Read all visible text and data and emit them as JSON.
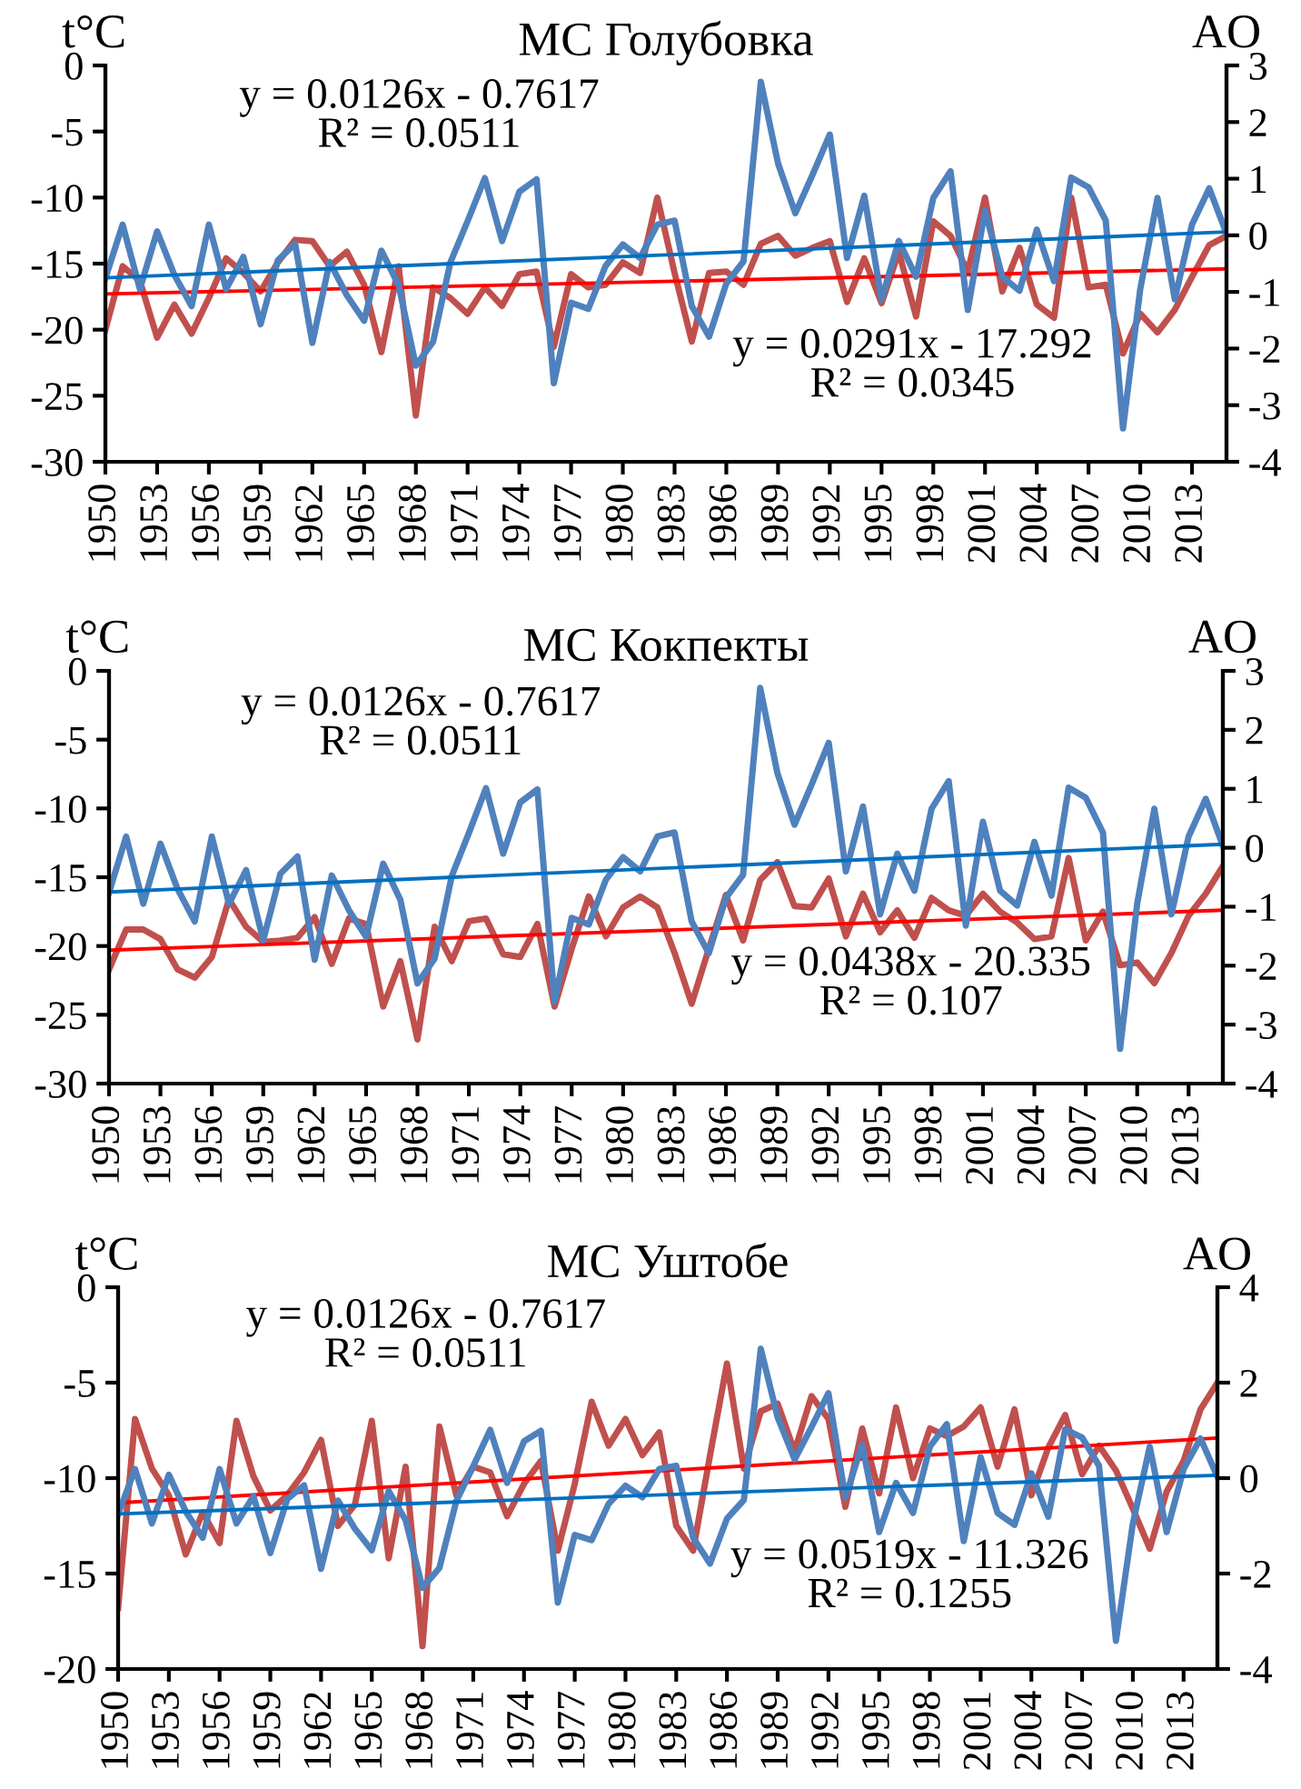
{
  "chart_data": [
    {
      "type": "line",
      "title": "МС Голубовка",
      "ylabel": "t°C",
      "y2label": "AO",
      "x": [
        1950,
        1951,
        1952,
        1953,
        1954,
        1955,
        1956,
        1957,
        1958,
        1959,
        1960,
        1961,
        1962,
        1963,
        1964,
        1965,
        1966,
        1967,
        1968,
        1969,
        1970,
        1971,
        1972,
        1973,
        1974,
        1975,
        1976,
        1977,
        1978,
        1979,
        1980,
        1981,
        1982,
        1983,
        1984,
        1985,
        1986,
        1987,
        1988,
        1989,
        1990,
        1991,
        1992,
        1993,
        1994,
        1995,
        1996,
        1997,
        1998,
        1999,
        2000,
        2001,
        2002,
        2003,
        2004,
        2005,
        2006,
        2007,
        2008,
        2009,
        2010,
        2011,
        2012,
        2013,
        2014,
        2015
      ],
      "xlim": [
        1950,
        2015
      ],
      "xticks": [
        1950,
        1953,
        1956,
        1959,
        1962,
        1965,
        1968,
        1971,
        1974,
        1977,
        1980,
        1983,
        1986,
        1989,
        1992,
        1995,
        1998,
        2001,
        2004,
        2007,
        2010,
        2013
      ],
      "ylim": [
        -30,
        0
      ],
      "yticks": [
        -30,
        -25,
        -20,
        -15,
        -10,
        -5,
        0
      ],
      "y2lim": [
        -4,
        3
      ],
      "y2ticks": [
        -4,
        -3,
        -2,
        -1,
        0,
        1,
        2,
        3
      ],
      "grid": false,
      "line_style": "solid",
      "series": [
        {
          "color": "#c0504d",
          "values": [
            -20.0,
            -15.2,
            -16.3,
            -20.6,
            -18.1,
            -20.3,
            -17.6,
            -14.6,
            -15.7,
            -17.1,
            -14.9,
            -13.2,
            -13.3,
            -15.2,
            -14.1,
            -16.6,
            -21.7,
            -15.2,
            -26.5,
            -16.8,
            -17.6,
            -18.8,
            -16.8,
            -18.2,
            -15.8,
            -15.6,
            -21.3,
            -15.8,
            -16.8,
            -16.6,
            -14.9,
            -15.7,
            -10.0,
            -15.7,
            -20.9,
            -15.7,
            -15.6,
            -16.6,
            -13.5,
            -12.9,
            -14.4,
            -13.8,
            -13.3,
            -17.9,
            -14.6,
            -18.0,
            -14.1,
            -19.0,
            -11.8,
            -12.9,
            -15.6,
            -10.0,
            -17.1,
            -13.8,
            -18.1,
            -19.1,
            -10.0,
            -16.8,
            -16.6,
            -21.8,
            -18.8,
            -20.2,
            -18.5,
            -16.0,
            -13.6,
            -12.9
          ]
        },
        {
          "color": "#4f81bd",
          "axis": "y2",
          "values": [
            -0.76,
            0.19,
            -0.95,
            0.07,
            -0.7,
            -1.25,
            0.19,
            -0.95,
            -0.38,
            -1.57,
            -0.44,
            -0.15,
            -1.9,
            -0.47,
            -1.06,
            -1.51,
            -0.27,
            -0.88,
            -2.3,
            -1.88,
            -0.48,
            0.25,
            1.01,
            -0.1,
            0.77,
            0.99,
            -2.61,
            -1.19,
            -1.3,
            -0.54,
            -0.16,
            -0.4,
            0.19,
            0.26,
            -1.25,
            -1.79,
            -0.85,
            -0.46,
            2.71,
            1.27,
            0.39,
            1.07,
            1.78,
            -0.4,
            0.7,
            -1.13,
            -0.1,
            -0.73,
            0.66,
            1.13,
            -1.32,
            0.44,
            -0.73,
            -0.98,
            0.1,
            -0.81,
            1.02,
            0.85,
            0.26,
            -3.41,
            -0.95,
            0.66,
            -1.13,
            0.19,
            0.83,
            0.03
          ]
        },
        {
          "color": "#ff0000",
          "type": "line",
          "values": [
            -17.3,
            null,
            null,
            null,
            null,
            null,
            null,
            null,
            null,
            null,
            null,
            null,
            null,
            null,
            null,
            null,
            null,
            null,
            null,
            null,
            null,
            null,
            null,
            null,
            null,
            null,
            null,
            null,
            null,
            null,
            null,
            null,
            null,
            null,
            null,
            null,
            null,
            null,
            null,
            null,
            null,
            null,
            null,
            null,
            null,
            null,
            null,
            null,
            null,
            null,
            null,
            null,
            null,
            null,
            null,
            null,
            null,
            null,
            null,
            null,
            null,
            null,
            null,
            null,
            null,
            -15.4
          ]
        },
        {
          "color": "#0070c0",
          "type": "line",
          "axis": "y2",
          "values": [
            -0.75,
            null,
            null,
            null,
            null,
            null,
            null,
            null,
            null,
            null,
            null,
            null,
            null,
            null,
            null,
            null,
            null,
            null,
            null,
            null,
            null,
            null,
            null,
            null,
            null,
            null,
            null,
            null,
            null,
            null,
            null,
            null,
            null,
            null,
            null,
            null,
            null,
            null,
            null,
            null,
            null,
            null,
            null,
            null,
            null,
            null,
            null,
            null,
            null,
            null,
            null,
            null,
            null,
            null,
            null,
            null,
            null,
            null,
            null,
            null,
            null,
            null,
            null,
            null,
            null,
            0.06
          ]
        }
      ],
      "annotations": [
        "y = 0.0126x - 0.7617\nR² = 0.0511",
        "y = 0.0291x - 17.292\nR² = 0.0345"
      ]
    },
    {
      "type": "line",
      "title": "МС Кокпекты",
      "ylabel": "t°C",
      "y2label": "AO",
      "x": [
        1950,
        1951,
        1952,
        1953,
        1954,
        1955,
        1956,
        1957,
        1958,
        1959,
        1960,
        1961,
        1962,
        1963,
        1964,
        1965,
        1966,
        1967,
        1968,
        1969,
        1970,
        1971,
        1972,
        1973,
        1974,
        1975,
        1976,
        1977,
        1978,
        1979,
        1980,
        1981,
        1982,
        1983,
        1984,
        1985,
        1986,
        1987,
        1988,
        1989,
        1990,
        1991,
        1992,
        1993,
        1994,
        1995,
        1996,
        1997,
        1998,
        1999,
        2000,
        2001,
        2002,
        2003,
        2004,
        2005,
        2006,
        2007,
        2008,
        2009,
        2010,
        2011,
        2012,
        2013,
        2014,
        2015
      ],
      "xlim": [
        1950,
        2015
      ],
      "xticks": [
        1950,
        1953,
        1956,
        1959,
        1962,
        1965,
        1968,
        1971,
        1974,
        1977,
        1980,
        1983,
        1986,
        1989,
        1992,
        1995,
        1998,
        2001,
        2004,
        2007,
        2010,
        2013
      ],
      "ylim": [
        -30,
        0
      ],
      "yticks": [
        -30,
        -25,
        -20,
        -15,
        -10,
        -5,
        0
      ],
      "y2lim": [
        -4,
        3
      ],
      "y2ticks": [
        -4,
        -3,
        -2,
        -1,
        0,
        1,
        2,
        3
      ],
      "grid": false,
      "line_style": "solid",
      "series": [
        {
          "color": "#c0504d",
          "values": [
            -21.7,
            -18.8,
            -18.8,
            -19.5,
            -21.7,
            -22.3,
            -20.8,
            -16.6,
            -18.6,
            -19.7,
            -19.6,
            -19.4,
            -17.9,
            -21.3,
            -18.0,
            -18.4,
            -24.4,
            -21.1,
            -26.8,
            -18.6,
            -21.1,
            -18.2,
            -18.0,
            -20.6,
            -20.8,
            -18.4,
            -24.4,
            -20.2,
            -16.4,
            -19.3,
            -17.2,
            -16.4,
            -17.2,
            -20.5,
            -24.2,
            -20.2,
            -16.3,
            -19.6,
            -15.2,
            -13.9,
            -17.1,
            -17.2,
            -15.1,
            -19.3,
            -16.2,
            -19.0,
            -17.4,
            -19.4,
            -16.5,
            -17.4,
            -17.8,
            -16.2,
            -17.5,
            -18.3,
            -19.5,
            -19.3,
            -13.6,
            -19.6,
            -17.5,
            -21.4,
            -21.2,
            -22.7,
            -20.5,
            -17.8,
            -16.2,
            -14.2
          ]
        },
        {
          "color": "#4f81bd",
          "axis": "y2",
          "values": [
            -0.76,
            0.19,
            -0.95,
            0.07,
            -0.7,
            -1.25,
            0.19,
            -0.95,
            -0.38,
            -1.57,
            -0.44,
            -0.15,
            -1.9,
            -0.47,
            -1.06,
            -1.51,
            -0.27,
            -0.88,
            -2.3,
            -1.88,
            -0.48,
            0.25,
            1.01,
            -0.1,
            0.77,
            0.99,
            -2.61,
            -1.19,
            -1.3,
            -0.54,
            -0.16,
            -0.4,
            0.19,
            0.26,
            -1.25,
            -1.79,
            -0.85,
            -0.46,
            2.71,
            1.27,
            0.39,
            1.07,
            1.78,
            -0.4,
            0.7,
            -1.13,
            -0.1,
            -0.73,
            0.66,
            1.13,
            -1.32,
            0.44,
            -0.73,
            -0.98,
            0.1,
            -0.81,
            1.02,
            0.85,
            0.26,
            -3.41,
            -0.95,
            0.66,
            -1.13,
            0.19,
            0.83,
            0.03
          ]
        },
        {
          "color": "#ff0000",
          "type": "line",
          "values": [
            -20.3,
            null,
            null,
            null,
            null,
            null,
            null,
            null,
            null,
            null,
            null,
            null,
            null,
            null,
            null,
            null,
            null,
            null,
            null,
            null,
            null,
            null,
            null,
            null,
            null,
            null,
            null,
            null,
            null,
            null,
            null,
            null,
            null,
            null,
            null,
            null,
            null,
            null,
            null,
            null,
            null,
            null,
            null,
            null,
            null,
            null,
            null,
            null,
            null,
            null,
            null,
            null,
            null,
            null,
            null,
            null,
            null,
            null,
            null,
            null,
            null,
            null,
            null,
            null,
            null,
            -17.4
          ]
        },
        {
          "color": "#0070c0",
          "type": "line",
          "axis": "y2",
          "values": [
            -0.75,
            null,
            null,
            null,
            null,
            null,
            null,
            null,
            null,
            null,
            null,
            null,
            null,
            null,
            null,
            null,
            null,
            null,
            null,
            null,
            null,
            null,
            null,
            null,
            null,
            null,
            null,
            null,
            null,
            null,
            null,
            null,
            null,
            null,
            null,
            null,
            null,
            null,
            null,
            null,
            null,
            null,
            null,
            null,
            null,
            null,
            null,
            null,
            null,
            null,
            null,
            null,
            null,
            null,
            null,
            null,
            null,
            null,
            null,
            null,
            null,
            null,
            null,
            null,
            null,
            0.06
          ]
        }
      ],
      "annotations": [
        "y = 0.0126x - 0.7617\nR² = 0.0511",
        "y = 0.0438x - 20.335\nR² = 0.107"
      ]
    },
    {
      "type": "line",
      "title": "МС Уштобе",
      "ylabel": "t°C",
      "y2label": "AO",
      "x": [
        1950,
        1951,
        1952,
        1953,
        1954,
        1955,
        1956,
        1957,
        1958,
        1959,
        1960,
        1961,
        1962,
        1963,
        1964,
        1965,
        1966,
        1967,
        1968,
        1969,
        1970,
        1971,
        1972,
        1973,
        1974,
        1975,
        1976,
        1977,
        1978,
        1979,
        1980,
        1981,
        1982,
        1983,
        1984,
        1985,
        1986,
        1987,
        1988,
        1989,
        1990,
        1991,
        1992,
        1993,
        1994,
        1995,
        1996,
        1997,
        1998,
        1999,
        2000,
        2001,
        2002,
        2003,
        2004,
        2005,
        2006,
        2007,
        2008,
        2009,
        2010,
        2011,
        2012,
        2013,
        2014,
        2015
      ],
      "xlim": [
        1950,
        2015
      ],
      "xticks": [
        1950,
        1953,
        1956,
        1959,
        1962,
        1965,
        1968,
        1971,
        1974,
        1977,
        1980,
        1983,
        1986,
        1989,
        1992,
        1995,
        1998,
        2001,
        2004,
        2007,
        2010,
        2013
      ],
      "ylim": [
        -20,
        0
      ],
      "yticks": [
        -20,
        -15,
        -10,
        -5,
        0
      ],
      "y2lim": [
        -4,
        4
      ],
      "y2ticks": [
        -4,
        -2,
        0,
        2,
        4
      ],
      "grid": false,
      "line_style": "solid",
      "series": [
        {
          "color": "#c0504d",
          "values": [
            -16.8,
            -6.9,
            -9.5,
            -10.9,
            -14.0,
            -11.8,
            -13.4,
            -7.0,
            -9.9,
            -11.7,
            -10.9,
            -9.7,
            -8.0,
            -12.5,
            -11.4,
            -7.0,
            -14.2,
            -9.4,
            -18.8,
            -7.3,
            -10.9,
            -9.4,
            -9.7,
            -12.0,
            -10.3,
            -9.1,
            -13.8,
            -10.3,
            -6.0,
            -8.3,
            -6.9,
            -8.8,
            -7.6,
            -12.5,
            -13.8,
            -8.8,
            -4.0,
            -9.5,
            -6.5,
            -6.1,
            -8.6,
            -5.7,
            -6.9,
            -11.5,
            -7.4,
            -10.8,
            -6.3,
            -10.0,
            -7.4,
            -7.8,
            -7.3,
            -6.3,
            -9.4,
            -6.4,
            -10.9,
            -8.4,
            -6.7,
            -9.8,
            -8.3,
            -9.6,
            -11.6,
            -13.7,
            -10.7,
            -9.1,
            -6.4,
            -5.0
          ]
        },
        {
          "color": "#4f81bd",
          "axis": "y2",
          "values": [
            -0.76,
            0.19,
            -0.95,
            0.07,
            -0.7,
            -1.25,
            0.19,
            -0.95,
            -0.38,
            -1.57,
            -0.44,
            -0.15,
            -1.9,
            -0.47,
            -1.06,
            -1.51,
            -0.27,
            -0.88,
            -2.3,
            -1.88,
            -0.48,
            0.25,
            1.01,
            -0.1,
            0.77,
            0.99,
            -2.61,
            -1.19,
            -1.3,
            -0.54,
            -0.16,
            -0.4,
            0.19,
            0.26,
            -1.25,
            -1.79,
            -0.85,
            -0.46,
            2.71,
            1.27,
            0.39,
            1.07,
            1.78,
            -0.4,
            0.7,
            -1.13,
            -0.1,
            -0.73,
            0.66,
            1.13,
            -1.32,
            0.44,
            -0.73,
            -0.98,
            0.1,
            -0.81,
            1.02,
            0.85,
            0.26,
            -3.41,
            -0.95,
            0.66,
            -1.13,
            0.19,
            0.83,
            0.03
          ]
        },
        {
          "color": "#ff0000",
          "type": "line",
          "values": [
            -11.3,
            null,
            null,
            null,
            null,
            null,
            null,
            null,
            null,
            null,
            null,
            null,
            null,
            null,
            null,
            null,
            null,
            null,
            null,
            null,
            null,
            null,
            null,
            null,
            null,
            null,
            null,
            null,
            null,
            null,
            null,
            null,
            null,
            null,
            null,
            null,
            null,
            null,
            null,
            null,
            null,
            null,
            null,
            null,
            null,
            null,
            null,
            null,
            null,
            null,
            null,
            null,
            null,
            null,
            null,
            null,
            null,
            null,
            null,
            null,
            null,
            null,
            null,
            null,
            null,
            -7.9
          ]
        },
        {
          "color": "#0070c0",
          "type": "line",
          "axis": "y2",
          "values": [
            -0.75,
            null,
            null,
            null,
            null,
            null,
            null,
            null,
            null,
            null,
            null,
            null,
            null,
            null,
            null,
            null,
            null,
            null,
            null,
            null,
            null,
            null,
            null,
            null,
            null,
            null,
            null,
            null,
            null,
            null,
            null,
            null,
            null,
            null,
            null,
            null,
            null,
            null,
            null,
            null,
            null,
            null,
            null,
            null,
            null,
            null,
            null,
            null,
            null,
            null,
            null,
            null,
            null,
            null,
            null,
            null,
            null,
            null,
            null,
            null,
            null,
            null,
            null,
            null,
            null,
            0.06
          ]
        }
      ],
      "annotations": [
        "y = 0.0126x - 0.7617\nR² = 0.0511",
        "y = 0.0519x - 11.326\nR² = 0.1255"
      ]
    }
  ]
}
